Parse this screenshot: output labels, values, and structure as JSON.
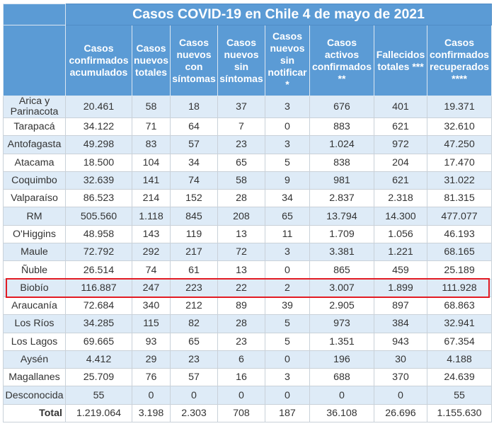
{
  "title": "Casos COVID-19 en Chile 4 de mayo de 2021",
  "columns": [
    "Casos confirmados acumulados",
    "Casos nuevos totales",
    "Casos nuevos con síntomas",
    "Casos nuevos sin síntomas",
    "Casos nuevos sin notificar *",
    "Casos activos confirmados **",
    "Fallecidos totales ***",
    "Casos confirmados recuperados ****"
  ],
  "rows": [
    {
      "region": "Arica y Parinacota",
      "values": [
        "20.461",
        "58",
        "18",
        "37",
        "3",
        "676",
        "401",
        "19.371"
      ]
    },
    {
      "region": "Tarapacá",
      "values": [
        "34.122",
        "71",
        "64",
        "7",
        "0",
        "883",
        "621",
        "32.610"
      ]
    },
    {
      "region": "Antofagasta",
      "values": [
        "49.298",
        "83",
        "57",
        "23",
        "3",
        "1.024",
        "972",
        "47.250"
      ]
    },
    {
      "region": "Atacama",
      "values": [
        "18.500",
        "104",
        "34",
        "65",
        "5",
        "838",
        "204",
        "17.470"
      ]
    },
    {
      "region": "Coquimbo",
      "values": [
        "32.639",
        "141",
        "74",
        "58",
        "9",
        "981",
        "621",
        "31.022"
      ]
    },
    {
      "region": "Valparaíso",
      "values": [
        "86.523",
        "214",
        "152",
        "28",
        "34",
        "2.837",
        "2.318",
        "81.315"
      ]
    },
    {
      "region": "RM",
      "values": [
        "505.560",
        "1.118",
        "845",
        "208",
        "65",
        "13.794",
        "14.300",
        "477.077"
      ]
    },
    {
      "region": "O'Higgins",
      "values": [
        "48.958",
        "143",
        "119",
        "13",
        "11",
        "1.709",
        "1.056",
        "46.193"
      ]
    },
    {
      "region": "Maule",
      "values": [
        "72.792",
        "292",
        "217",
        "72",
        "3",
        "3.381",
        "1.221",
        "68.165"
      ]
    },
    {
      "region": "Ñuble",
      "values": [
        "26.514",
        "74",
        "61",
        "13",
        "0",
        "865",
        "459",
        "25.189"
      ]
    },
    {
      "region": "Biobío",
      "values": [
        "116.887",
        "247",
        "223",
        "22",
        "2",
        "3.007",
        "1.899",
        "111.928"
      ]
    },
    {
      "region": "Araucanía",
      "values": [
        "72.684",
        "340",
        "212",
        "89",
        "39",
        "2.905",
        "897",
        "68.863"
      ]
    },
    {
      "region": "Los Ríos",
      "values": [
        "34.285",
        "115",
        "82",
        "28",
        "5",
        "973",
        "384",
        "32.941"
      ]
    },
    {
      "region": "Los Lagos",
      "values": [
        "69.665",
        "93",
        "65",
        "23",
        "5",
        "1.351",
        "943",
        "67.354"
      ]
    },
    {
      "region": "Aysén",
      "values": [
        "4.412",
        "29",
        "23",
        "6",
        "0",
        "196",
        "30",
        "4.188"
      ]
    },
    {
      "region": "Magallanes",
      "values": [
        "25.709",
        "76",
        "57",
        "16",
        "3",
        "688",
        "370",
        "24.639"
      ]
    },
    {
      "region": "Desconocida",
      "values": [
        "55",
        "0",
        "0",
        "0",
        "0",
        "0",
        "0",
        "55"
      ]
    }
  ],
  "total": {
    "label": "Total",
    "values": [
      "1.219.064",
      "3.198",
      "2.303",
      "708",
      "187",
      "36.108",
      "26.696",
      "1.155.630"
    ]
  },
  "highlighted_region": "Biobío",
  "colors": {
    "header": "#5b9bd5",
    "stripe": "#deebf7",
    "highlight": "#e21b23"
  }
}
